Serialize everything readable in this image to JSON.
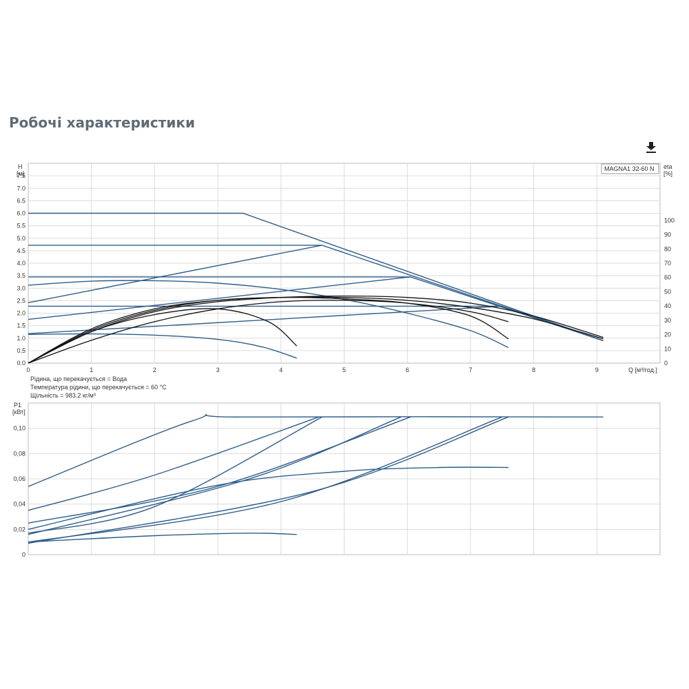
{
  "page": {
    "title": "Робочі характеристики",
    "download_icon": "download-icon"
  },
  "fluid_notes": [
    "Рідина, що перекачується = Вода",
    "Температура рідини, що перекачується = 60 °C",
    "Щільність = 983.2 кг/м³"
  ],
  "chart_data": [
    {
      "type": "line",
      "legend": "MAGNA1 32-60 N",
      "xlabel": "Q [м³/год.]",
      "ylabel_left": [
        "H",
        "[м]"
      ],
      "ylabel_right": [
        "eta",
        "[%]"
      ],
      "xlim": [
        0,
        10
      ],
      "ylim": [
        0,
        8
      ],
      "y2lim": [
        0,
        140
      ],
      "x_ticks": [
        0,
        1,
        2,
        3,
        4,
        5,
        6,
        7,
        8,
        9
      ],
      "y_ticks": [
        "0.0",
        "0.5",
        "1.0",
        "1.5",
        "2.0",
        "2.5",
        "3.0",
        "3.5",
        "4.0",
        "4.5",
        "5.0",
        "5.5",
        "6.0",
        "6.5",
        "7.0",
        "7.5"
      ],
      "y2_ticks": [
        0,
        10,
        20,
        30,
        40,
        50,
        60,
        70,
        80,
        90,
        100
      ],
      "grid": true,
      "head_series": [
        {
          "color": "#2e5d8a",
          "points": [
            [
              0,
              6.0
            ],
            [
              3.4,
              6.0
            ],
            [
              9.1,
              0.9
            ]
          ]
        },
        {
          "color": "#2e5d8a",
          "points": [
            [
              0,
              4.72
            ],
            [
              4.65,
              4.72
            ],
            [
              9.1,
              0.9
            ]
          ]
        },
        {
          "color": "#2e5d8a",
          "points": [
            [
              0,
              3.45
            ],
            [
              6.05,
              3.45
            ],
            [
              9.1,
              0.9
            ]
          ]
        },
        {
          "color": "#2e5d8a",
          "points": [
            [
              0,
              2.28
            ],
            [
              7.5,
              2.28
            ],
            [
              9.1,
              0.9
            ]
          ]
        },
        {
          "color": "#2e5d8a",
          "points": [
            [
              0,
              2.42
            ],
            [
              4.65,
              4.72
            ]
          ]
        },
        {
          "color": "#2e5d8a",
          "points": [
            [
              0,
              1.75
            ],
            [
              6.05,
              3.45
            ]
          ]
        },
        {
          "color": "#2e5d8a",
          "points": [
            [
              0,
              1.18
            ],
            [
              7.5,
              2.28
            ]
          ]
        },
        {
          "color": "#2e5d8a",
          "points": [
            [
              0,
              3.12
            ],
            [
              1.0,
              3.28
            ],
            [
              2.0,
              3.3
            ],
            [
              3.0,
              3.2
            ],
            [
              4.0,
              2.95
            ],
            [
              5.0,
              2.55
            ],
            [
              6.0,
              2.0
            ],
            [
              7.0,
              1.3
            ],
            [
              7.6,
              0.62
            ]
          ]
        },
        {
          "color": "#2e5d8a",
          "points": [
            [
              0,
              1.15
            ],
            [
              1.0,
              1.17
            ],
            [
              2.0,
              1.12
            ],
            [
              3.0,
              0.95
            ],
            [
              3.7,
              0.65
            ],
            [
              4.25,
              0.2
            ]
          ]
        }
      ],
      "efficiency_series": [
        {
          "color": "#111111",
          "points": [
            [
              0,
              0
            ],
            [
              1.0,
              22
            ],
            [
              2.0,
              36
            ],
            [
              3.0,
              43
            ],
            [
              4.0,
              46
            ],
            [
              5.0,
              47
            ],
            [
              6.0,
              46
            ],
            [
              7.0,
              42
            ],
            [
              8.0,
              33
            ],
            [
              9.1,
              18
            ]
          ]
        },
        {
          "color": "#111111",
          "points": [
            [
              0,
              0
            ],
            [
              1.0,
              23
            ],
            [
              2.0,
              37
            ],
            [
              3.0,
              44
            ],
            [
              4.0,
              46
            ],
            [
              5.0,
              46
            ],
            [
              6.0,
              44
            ],
            [
              7.0,
              39
            ],
            [
              8.0,
              31
            ],
            [
              9.1,
              17
            ]
          ]
        },
        {
          "color": "#111111",
          "points": [
            [
              0,
              0
            ],
            [
              1.0,
              24
            ],
            [
              2.0,
              38
            ],
            [
              3.0,
              44
            ],
            [
              4.0,
              46
            ],
            [
              5.0,
              45
            ],
            [
              6.0,
              42
            ],
            [
              7.0,
              33
            ],
            [
              7.6,
              17
            ]
          ]
        },
        {
          "color": "#111111",
          "points": [
            [
              0,
              0
            ],
            [
              1.0,
              22
            ],
            [
              2.0,
              34
            ],
            [
              3.0,
              38
            ],
            [
              3.8,
              29
            ],
            [
              4.25,
              12
            ]
          ]
        },
        {
          "color": "#111111",
          "points": [
            [
              0,
              0
            ],
            [
              1.0,
              16
            ],
            [
              2.0,
              29
            ],
            [
              3.0,
              38
            ],
            [
              4.0,
              43
            ],
            [
              5.0,
              44
            ],
            [
              6.0,
              42
            ],
            [
              7.0,
              36
            ],
            [
              7.6,
              29
            ]
          ]
        }
      ]
    },
    {
      "type": "line",
      "xlabel": "",
      "ylabel": [
        "P1",
        "[кВт]"
      ],
      "xlim": [
        0,
        10
      ],
      "ylim": [
        0,
        0.12
      ],
      "y_ticks": [
        "0",
        "0,02",
        "0,04",
        "0,06",
        "0,08",
        "0,10"
      ],
      "grid": true,
      "power_series": [
        {
          "color": "#2e5d8a",
          "points": [
            [
              0,
              0.054
            ],
            [
              2.6,
              0.106
            ],
            [
              3.4,
              0.109
            ],
            [
              9.1,
              0.109
            ]
          ]
        },
        {
          "color": "#2e5d8a",
          "points": [
            [
              0,
              0.035
            ],
            [
              2.0,
              0.063
            ],
            [
              4.6,
              0.109
            ]
          ]
        },
        {
          "color": "#2e5d8a",
          "points": [
            [
              0,
              0.017
            ],
            [
              2.0,
              0.038
            ],
            [
              4.65,
              0.109
            ]
          ]
        },
        {
          "color": "#2e5d8a",
          "points": [
            [
              0,
              0.025
            ],
            [
              3.0,
              0.054
            ],
            [
              6.05,
              0.109
            ]
          ]
        },
        {
          "color": "#2e5d8a",
          "points": [
            [
              0,
              0.016
            ],
            [
              3.5,
              0.06
            ],
            [
              5.9,
              0.109
            ]
          ]
        },
        {
          "color": "#2e5d8a",
          "points": [
            [
              0,
              0.01
            ],
            [
              4.0,
              0.042
            ],
            [
              7.5,
              0.109
            ]
          ]
        },
        {
          "color": "#2e5d8a",
          "points": [
            [
              0,
              0.009
            ],
            [
              4.5,
              0.05
            ],
            [
              7.6,
              0.109
            ]
          ]
        },
        {
          "color": "#2e5d8a",
          "points": [
            [
              0,
              0.02
            ],
            [
              3.0,
              0.055
            ],
            [
              5.0,
              0.066
            ],
            [
              6.5,
              0.069
            ],
            [
              7.6,
              0.069
            ]
          ]
        },
        {
          "color": "#2e5d8a",
          "points": [
            [
              0,
              0.01
            ],
            [
              2.0,
              0.015
            ],
            [
              3.5,
              0.017
            ],
            [
              4.25,
              0.016
            ]
          ]
        }
      ]
    }
  ]
}
